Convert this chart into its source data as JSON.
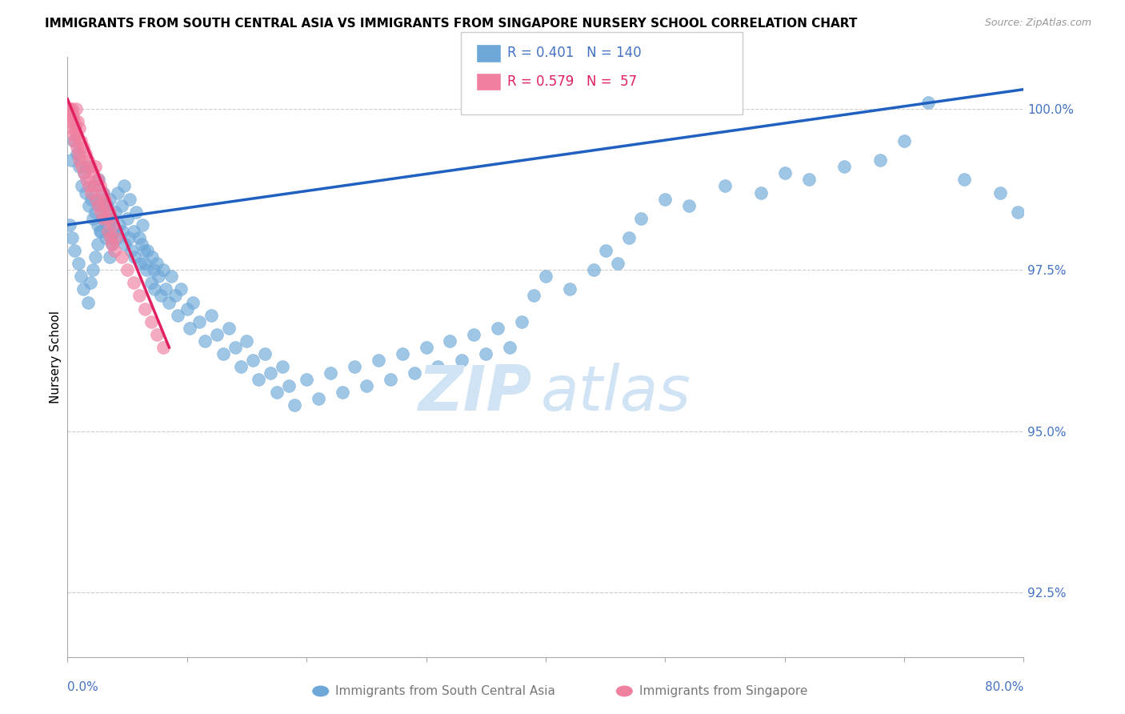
{
  "title": "IMMIGRANTS FROM SOUTH CENTRAL ASIA VS IMMIGRANTS FROM SINGAPORE NURSERY SCHOOL CORRELATION CHART",
  "source": "Source: ZipAtlas.com",
  "ylabel": "Nursery School",
  "yticks": [
    92.5,
    95.0,
    97.5,
    100.0
  ],
  "ytick_labels": [
    "92.5%",
    "95.0%",
    "97.5%",
    "100.0%"
  ],
  "xmin": 0.0,
  "xmax": 80.0,
  "ymin": 91.5,
  "ymax": 100.8,
  "legend_blue_R": "R = 0.401",
  "legend_blue_N": "N = 140",
  "legend_pink_R": "R = 0.579",
  "legend_pink_N": "N =  57",
  "legend_label_blue": "Immigrants from South Central Asia",
  "legend_label_pink": "Immigrants from Singapore",
  "blue_color": "#6ea8d8",
  "pink_color": "#f080a0",
  "blue_line_color": "#2060c0",
  "pink_line_color": "#e02060",
  "watermark_color": "#d0e4f5",
  "blue_scatter_x": [
    0.3,
    0.5,
    0.8,
    1.0,
    1.2,
    1.4,
    1.5,
    1.6,
    1.8,
    2.0,
    2.1,
    2.2,
    2.3,
    2.4,
    2.5,
    2.6,
    2.7,
    2.8,
    3.0,
    3.1,
    3.2,
    3.3,
    3.4,
    3.5,
    3.6,
    3.7,
    3.8,
    4.0,
    4.1,
    4.2,
    4.3,
    4.5,
    4.6,
    4.7,
    4.8,
    5.0,
    5.1,
    5.2,
    5.3,
    5.5,
    5.6,
    5.7,
    6.0,
    6.1,
    6.2,
    6.3,
    6.4,
    6.5,
    6.6,
    6.7,
    7.0,
    7.1,
    7.2,
    7.3,
    7.5,
    7.6,
    7.8,
    8.0,
    8.2,
    8.5,
    8.7,
    9.0,
    9.2,
    9.5,
    10.0,
    10.2,
    10.5,
    11.0,
    11.5,
    12.0,
    12.5,
    13.0,
    13.5,
    14.0,
    14.5,
    15.0,
    15.5,
    16.0,
    16.5,
    17.0,
    17.5,
    18.0,
    18.5,
    19.0,
    20.0,
    21.0,
    22.0,
    23.0,
    24.0,
    25.0,
    26.0,
    27.0,
    28.0,
    29.0,
    30.0,
    31.0,
    32.0,
    33.0,
    34.0,
    35.0,
    36.0,
    37.0,
    38.0,
    39.0,
    40.0,
    42.0,
    44.0,
    45.0,
    46.0,
    47.0,
    48.0,
    50.0,
    52.0,
    55.0,
    58.0,
    60.0,
    62.0,
    65.0,
    68.0,
    70.0,
    72.0,
    75.0,
    78.0,
    79.5,
    0.2,
    0.4,
    0.6,
    0.9,
    1.1,
    1.3,
    1.7,
    1.9,
    2.15,
    2.35,
    2.55,
    2.75,
    2.95,
    3.15,
    3.55,
    3.75
  ],
  "blue_scatter_y": [
    99.2,
    99.5,
    99.3,
    99.1,
    98.8,
    99.0,
    98.7,
    99.1,
    98.5,
    98.6,
    98.3,
    98.8,
    98.4,
    98.6,
    98.2,
    98.9,
    98.5,
    98.1,
    98.7,
    98.3,
    98.0,
    98.5,
    98.2,
    98.6,
    98.0,
    98.3,
    98.1,
    98.4,
    98.0,
    98.7,
    98.2,
    98.5,
    98.1,
    98.8,
    97.9,
    98.3,
    98.0,
    98.6,
    97.8,
    98.1,
    97.7,
    98.4,
    98.0,
    97.6,
    97.9,
    98.2,
    97.8,
    97.6,
    97.5,
    97.8,
    97.3,
    97.7,
    97.5,
    97.2,
    97.6,
    97.4,
    97.1,
    97.5,
    97.2,
    97.0,
    97.4,
    97.1,
    96.8,
    97.2,
    96.9,
    96.6,
    97.0,
    96.7,
    96.4,
    96.8,
    96.5,
    96.2,
    96.6,
    96.3,
    96.0,
    96.4,
    96.1,
    95.8,
    96.2,
    95.9,
    95.6,
    96.0,
    95.7,
    95.4,
    95.8,
    95.5,
    95.9,
    95.6,
    96.0,
    95.7,
    96.1,
    95.8,
    96.2,
    95.9,
    96.3,
    96.0,
    96.4,
    96.1,
    96.5,
    96.2,
    96.6,
    96.3,
    96.7,
    97.1,
    97.4,
    97.2,
    97.5,
    97.8,
    97.6,
    98.0,
    98.3,
    98.6,
    98.5,
    98.8,
    98.7,
    99.0,
    98.9,
    99.1,
    99.2,
    99.5,
    100.1,
    98.9,
    98.7,
    98.4,
    98.2,
    98.0,
    97.8,
    97.6,
    97.4,
    97.2,
    97.0,
    97.3,
    97.5,
    97.7,
    97.9,
    98.1,
    98.3,
    98.5,
    97.7,
    97.9
  ],
  "pink_scatter_x": [
    0.1,
    0.15,
    0.2,
    0.25,
    0.3,
    0.35,
    0.4,
    0.45,
    0.5,
    0.55,
    0.6,
    0.65,
    0.7,
    0.75,
    0.8,
    0.85,
    0.9,
    0.95,
    1.0,
    1.1,
    1.2,
    1.3,
    1.4,
    1.5,
    1.6,
    1.7,
    1.8,
    1.9,
    2.0,
    2.1,
    2.2,
    2.3,
    2.4,
    2.5,
    2.6,
    2.7,
    2.8,
    2.9,
    3.0,
    3.1,
    3.2,
    3.3,
    3.4,
    3.5,
    3.6,
    3.7,
    3.8,
    3.9,
    4.0,
    4.5,
    5.0,
    5.5,
    6.0,
    6.5,
    7.0,
    7.5,
    8.0
  ],
  "pink_scatter_y": [
    100.0,
    100.0,
    100.0,
    99.9,
    99.8,
    100.0,
    99.7,
    99.9,
    99.6,
    99.8,
    99.5,
    99.7,
    100.0,
    99.6,
    99.4,
    99.8,
    99.3,
    99.7,
    99.2,
    99.5,
    99.1,
    99.4,
    99.0,
    99.3,
    98.9,
    99.2,
    98.8,
    99.1,
    98.7,
    99.0,
    98.8,
    99.1,
    98.6,
    98.9,
    98.5,
    98.8,
    98.4,
    98.7,
    98.3,
    98.6,
    98.5,
    98.3,
    98.1,
    98.4,
    98.0,
    97.9,
    98.2,
    97.8,
    98.0,
    97.7,
    97.5,
    97.3,
    97.1,
    96.9,
    96.7,
    96.5,
    96.3
  ],
  "blue_trend_x": [
    0.0,
    80.0
  ],
  "blue_trend_y": [
    98.2,
    100.3
  ],
  "pink_trend_x": [
    0.0,
    8.5
  ],
  "pink_trend_y": [
    100.15,
    96.3
  ]
}
